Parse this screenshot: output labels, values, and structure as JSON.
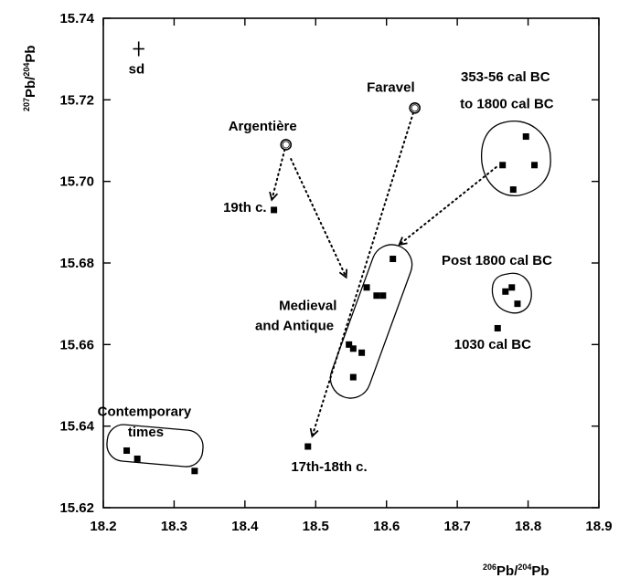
{
  "chart_data": {
    "type": "scatter",
    "xlabel": {
      "sup": "206",
      "main": "Pb/",
      "sup2": "204",
      "main2": "Pb"
    },
    "ylabel": {
      "sup": "207",
      "main": "Pb/",
      "sup2": "204",
      "main2": "Pb"
    },
    "xlim": [
      18.2,
      18.9
    ],
    "ylim": [
      15.62,
      15.74
    ],
    "xticks": [
      18.2,
      18.3,
      18.4,
      18.5,
      18.6,
      18.7,
      18.8,
      18.9
    ],
    "xtick_labels": [
      "18.2",
      "18.3",
      "18.4",
      "18.5",
      "18.6",
      "18.7",
      "18.8",
      "18.9"
    ],
    "yticks": [
      15.62,
      15.64,
      15.66,
      15.68,
      15.7,
      15.72,
      15.74
    ],
    "ytick_labels": [
      "15.62",
      "15.64",
      "15.66",
      "15.68",
      "15.70",
      "15.72",
      "15.74"
    ],
    "grid": false,
    "series": [
      {
        "name": "Contemporary times",
        "marker": "square",
        "points": [
          [
            18.233,
            15.634
          ],
          [
            18.248,
            15.632
          ],
          [
            18.329,
            15.629
          ]
        ]
      },
      {
        "name": "17th-18th c.",
        "marker": "square",
        "points": [
          [
            18.489,
            15.635
          ]
        ]
      },
      {
        "name": "19th c.",
        "marker": "square",
        "points": [
          [
            18.441,
            15.693
          ]
        ]
      },
      {
        "name": "Medieval and Antique",
        "marker": "square",
        "points": [
          [
            18.609,
            15.681
          ],
          [
            18.572,
            15.674
          ],
          [
            18.586,
            15.672
          ],
          [
            18.595,
            15.672
          ],
          [
            18.547,
            15.66
          ],
          [
            18.553,
            15.659
          ],
          [
            18.565,
            15.658
          ],
          [
            18.553,
            15.652
          ]
        ]
      },
      {
        "name": "353-56 cal BC to 1800 cal BC",
        "marker": "square",
        "points": [
          [
            18.797,
            15.711
          ],
          [
            18.764,
            15.704
          ],
          [
            18.809,
            15.704
          ],
          [
            18.779,
            15.698
          ]
        ]
      },
      {
        "name": "Post 1800 cal BC",
        "marker": "square",
        "points": [
          [
            18.768,
            15.673
          ],
          [
            18.777,
            15.674
          ],
          [
            18.785,
            15.67
          ]
        ]
      },
      {
        "name": "1030 cal BC",
        "marker": "square",
        "points": [
          [
            18.757,
            15.664
          ]
        ]
      },
      {
        "name": "Argentière",
        "marker": "circle",
        "points": [
          [
            18.458,
            15.709
          ]
        ]
      },
      {
        "name": "Faravel",
        "marker": "circle",
        "points": [
          [
            18.64,
            15.718
          ]
        ]
      }
    ],
    "annotations": [
      {
        "text": "sd",
        "x": 18.247,
        "y": 15.7265
      },
      {
        "text": "Faravel",
        "x": 18.606,
        "y": 15.722
      },
      {
        "text": "Argentière",
        "x": 18.425,
        "y": 15.7125
      },
      {
        "text": "19th c.",
        "x": 18.4,
        "y": 15.6925
      },
      {
        "text": "Medieval",
        "x": 18.489,
        "y": 15.6685
      },
      {
        "text": "and Antique",
        "x": 18.47,
        "y": 15.6635
      },
      {
        "text": "Post 1800 cal BC",
        "x": 18.756,
        "y": 15.6795
      },
      {
        "text": "1030 cal BC",
        "x": 18.75,
        "y": 15.659
      },
      {
        "text": "353-56 cal BC",
        "x": 18.768,
        "y": 15.7245
      },
      {
        "text": "to 1800 cal BC",
        "x": 18.77,
        "y": 15.718
      },
      {
        "text": "Contemporary",
        "x": 18.258,
        "y": 15.6425
      },
      {
        "text": "times",
        "x": 18.26,
        "y": 15.6375
      },
      {
        "text": "17th-18th c.",
        "x": 18.519,
        "y": 15.629
      }
    ],
    "arrows": [
      {
        "from": [
          18.458,
          15.709
        ],
        "to": [
          18.438,
          15.6955
        ]
      },
      {
        "from": [
          18.465,
          15.7055
        ],
        "to": [
          18.543,
          15.6765
        ]
      },
      {
        "from": [
          18.64,
          15.718
        ],
        "to": [
          18.495,
          15.6375
        ]
      },
      {
        "from": [
          18.755,
          15.7035
        ],
        "to": [
          18.618,
          15.6845
        ]
      }
    ],
    "sd_marker": {
      "x": 18.25,
      "y": 15.7325,
      "dx": 0.008,
      "dy": 0.0018
    }
  }
}
